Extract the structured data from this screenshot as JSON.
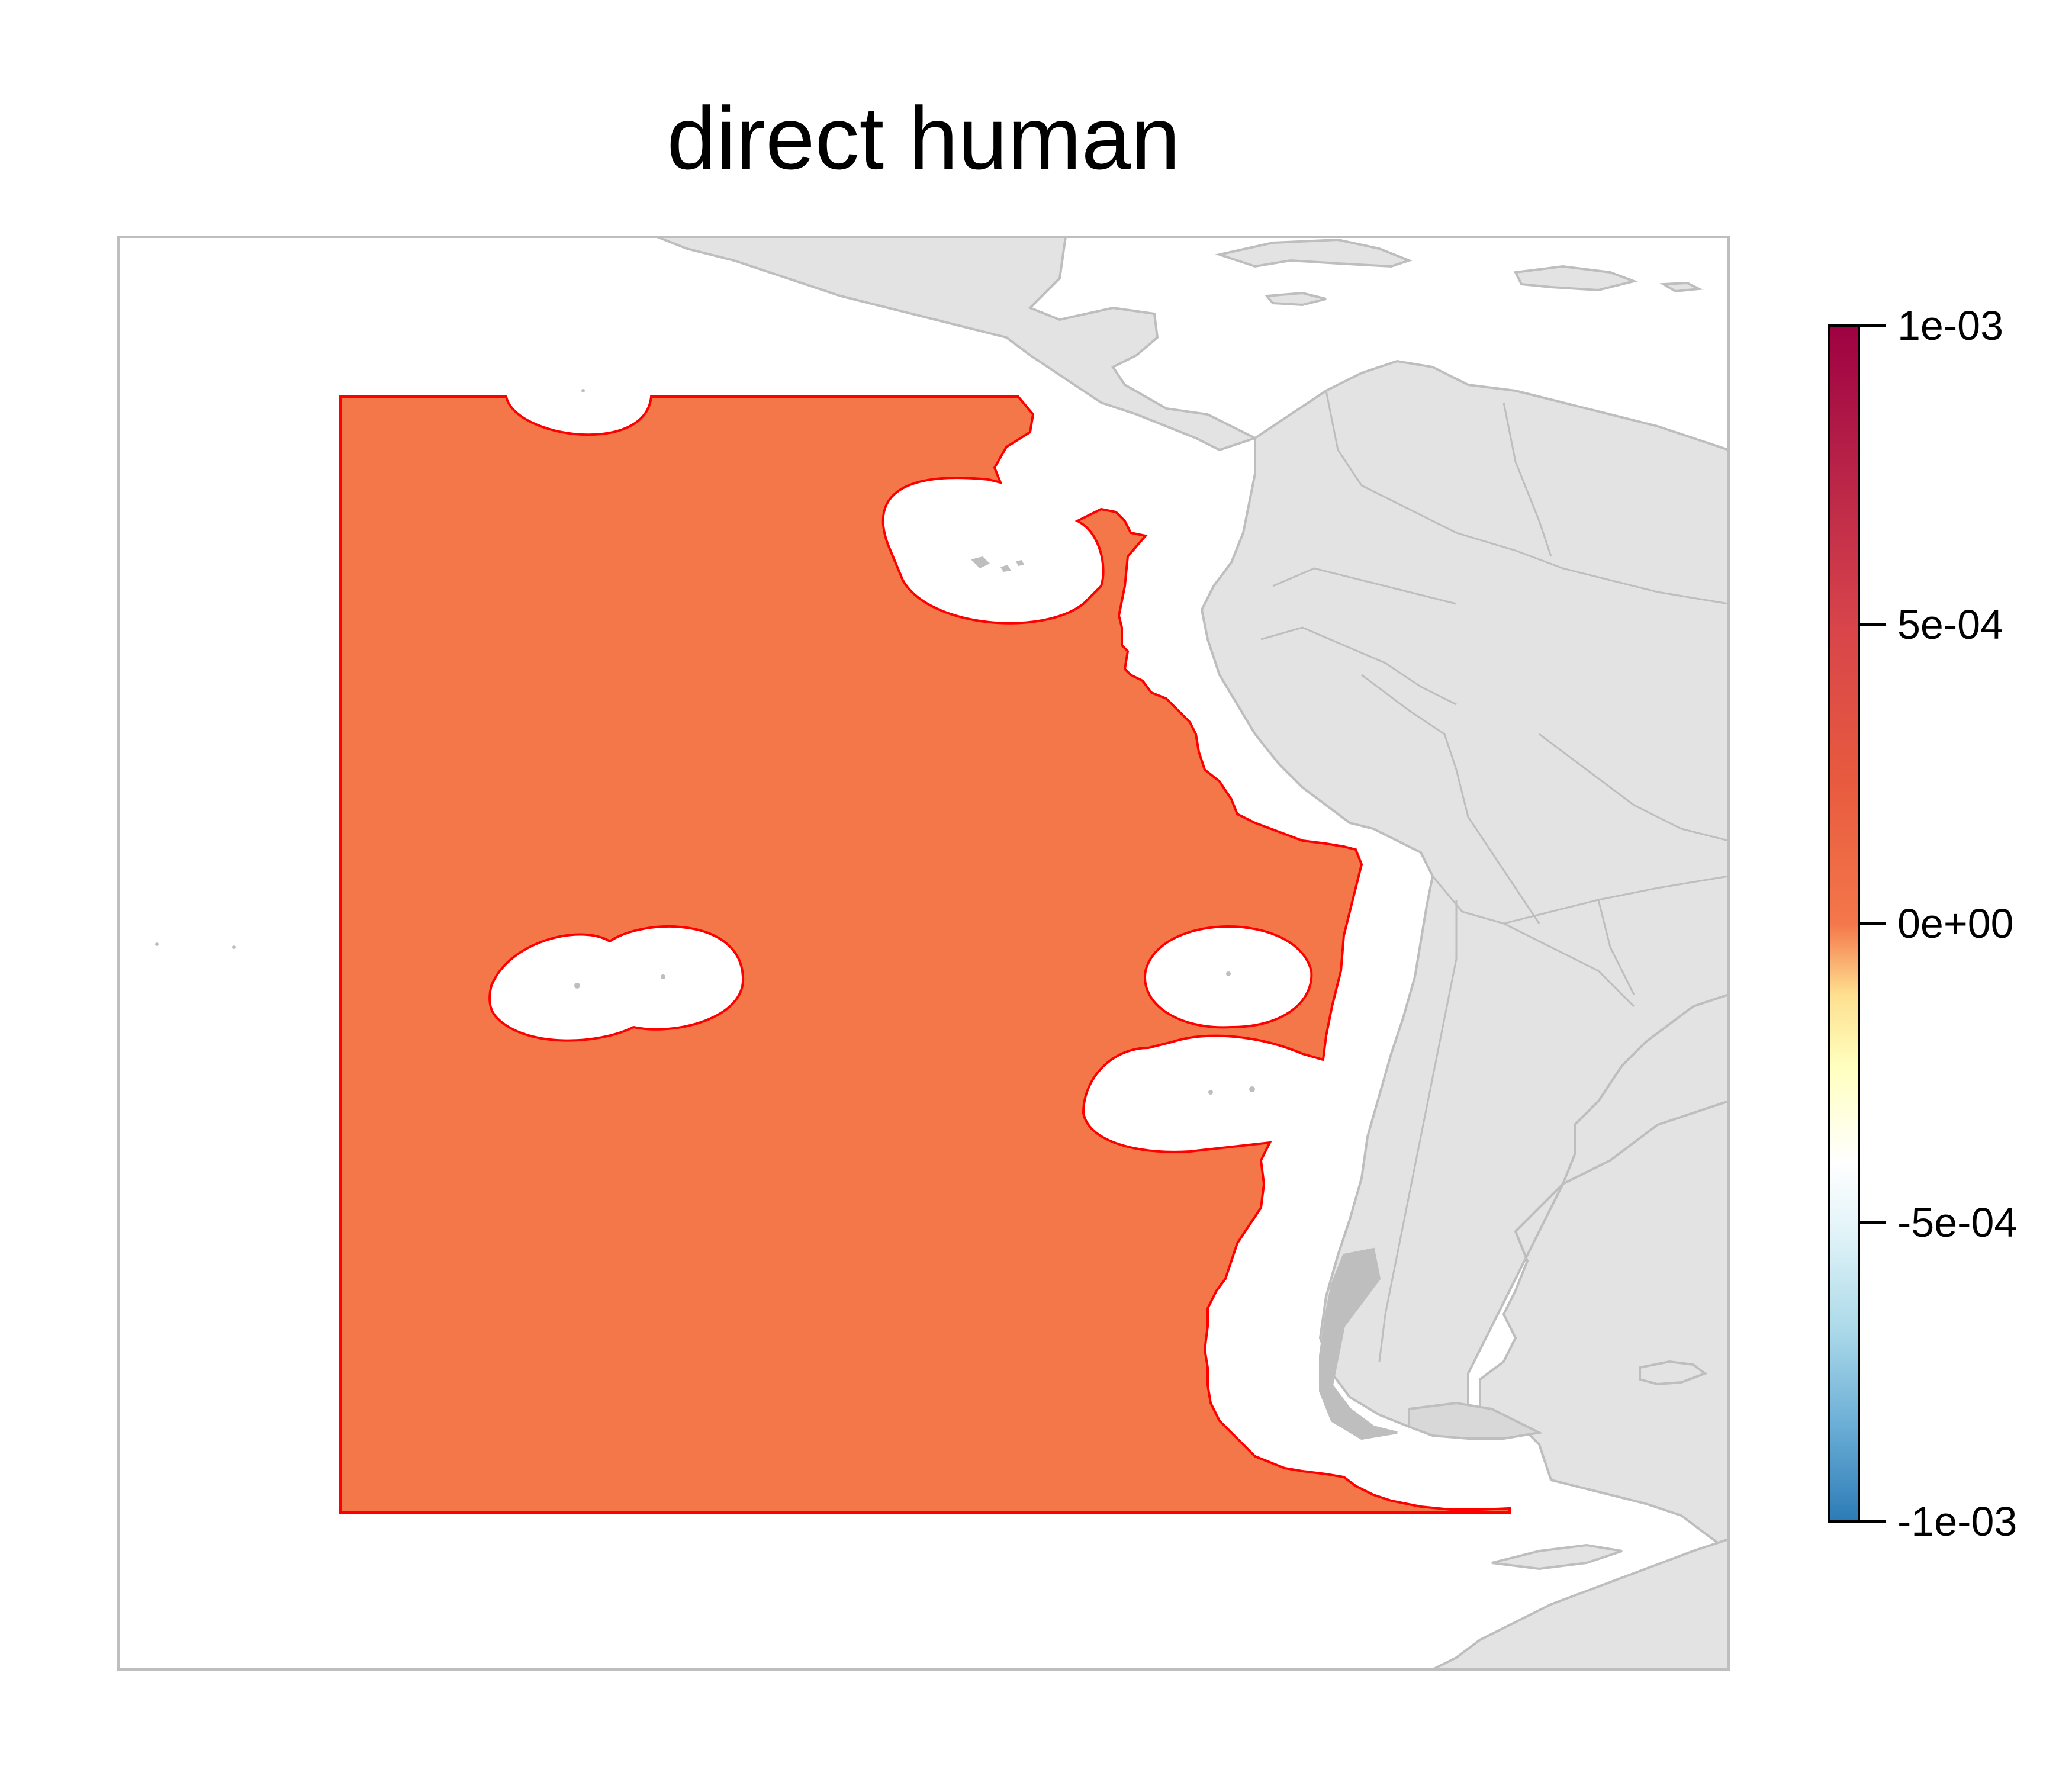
{
  "title": "direct human",
  "map": {
    "region_fill_color": "#F4774A",
    "region_border_color": "#FF0000",
    "land_color": "#E3E3E3",
    "land_border_color": "#BEBEBE",
    "frame_color": "#BEBEBE"
  },
  "colorbar": {
    "ticks": [
      "1e-03",
      "5e-04",
      "0e+00",
      "-5e-04",
      "-1e-03"
    ],
    "tick_values": [
      0.001,
      0.0005,
      0,
      -0.0005,
      -0.001
    ],
    "range": [
      -0.001,
      0.001
    ],
    "palette": [
      "#2C7BB6",
      "#6BAED6",
      "#ABD9E9",
      "#E0F3F8",
      "#FFFFFF",
      "#FFFFBF",
      "#FEE090",
      "#FDAE61",
      "#F46D43",
      "#D73027",
      "#A50026",
      "#9E0142"
    ]
  }
}
